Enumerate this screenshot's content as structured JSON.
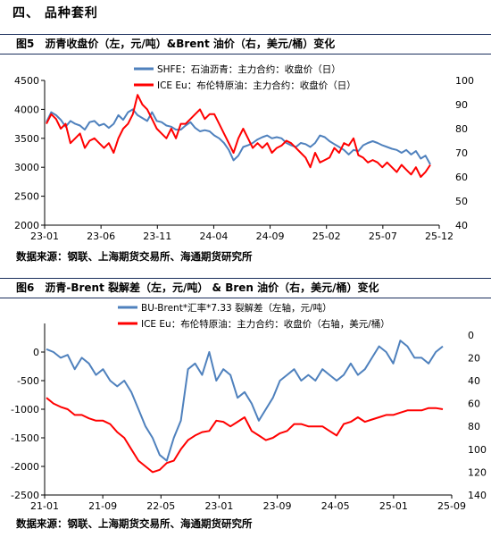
{
  "section": {
    "title": "四、 品种套利"
  },
  "figures": [
    {
      "num": "图5",
      "title": "沥青收盘价（左，元/吨）&Brent 油价（右，美元/桶）变化",
      "source": "数据来源：钢联、上海期货交易所、海通期货研究所"
    },
    {
      "num": "图6",
      "title": "沥青-Brent 裂解差（左，元/吨） & Bren 油价（右，美元/桶）变化",
      "source": "数据来源：钢联、上海期货交易所、海通期货研究所"
    }
  ],
  "chart_data": [
    {
      "type": "line",
      "xticks": [
        "23-01",
        "23-06",
        "23-11",
        "24-04",
        "24-09",
        "25-02",
        "25-07",
        "25-12"
      ],
      "ylim_left": [
        2000,
        4500
      ],
      "yticks_left": [
        2000,
        2500,
        3000,
        3500,
        4000,
        4500
      ],
      "ylim_right": [
        40,
        100
      ],
      "yticks_right": [
        40,
        50,
        60,
        70,
        80,
        90,
        100
      ],
      "grid": false,
      "legend_position": "top-center",
      "series": [
        {
          "name": "SHFE：石油沥青：主力合约：收盘价（日）",
          "axis": "left",
          "color": "#4f81bd",
          "values": [
            3780,
            3950,
            3900,
            3820,
            3700,
            3800,
            3750,
            3720,
            3650,
            3780,
            3800,
            3720,
            3750,
            3680,
            3750,
            3900,
            3820,
            3950,
            4000,
            3900,
            3850,
            3800,
            3950,
            3800,
            3780,
            3720,
            3700,
            3650,
            3650,
            3720,
            3780,
            3680,
            3620,
            3640,
            3620,
            3550,
            3500,
            3420,
            3300,
            3120,
            3200,
            3350,
            3380,
            3420,
            3480,
            3520,
            3550,
            3500,
            3520,
            3500,
            3420,
            3380,
            3350,
            3420,
            3400,
            3350,
            3420,
            3550,
            3520,
            3450,
            3400,
            3350,
            3300,
            3220,
            3300,
            3280,
            3380,
            3420,
            3450,
            3420,
            3380,
            3350,
            3320,
            3300,
            3250,
            3300,
            3220,
            3280,
            3150,
            3200,
            3050
          ]
        },
        {
          "name": "ICE Eu：布伦特原油：主力合约：收盘价（日）",
          "axis": "right",
          "color": "#ff0000",
          "values": [
            82,
            86,
            84,
            80,
            82,
            74,
            76,
            78,
            72,
            75,
            76,
            74,
            72,
            74,
            70,
            76,
            80,
            82,
            86,
            94,
            90,
            88,
            84,
            80,
            78,
            76,
            80,
            76,
            82,
            82,
            84,
            86,
            88,
            84,
            86,
            86,
            82,
            78,
            74,
            70,
            76,
            80,
            76,
            72,
            74,
            72,
            74,
            70,
            72,
            73,
            75,
            74,
            72,
            70,
            68,
            64,
            70,
            66,
            67,
            68,
            72,
            70,
            74,
            73,
            76,
            69,
            68,
            66,
            67,
            66,
            64,
            66,
            64,
            62,
            65,
            63,
            61,
            64,
            60,
            62,
            65
          ]
        }
      ]
    },
    {
      "type": "line",
      "xticks": [
        "21-01",
        "21-09",
        "22-05",
        "23-01",
        "23-09",
        "24-05",
        "25-01",
        "25-09"
      ],
      "ylim_left": [
        -2500,
        500
      ],
      "yticks_left": [
        -2500,
        -2000,
        -1500,
        -1000,
        -500,
        0
      ],
      "ylim_right": [
        140,
        -10
      ],
      "yticks_right": [
        0,
        20,
        40,
        60,
        80,
        100,
        120,
        140
      ],
      "right_axis_inverted": true,
      "grid": false,
      "legend_position": "top-center",
      "series": [
        {
          "name": "BU-Brent*汇率*7.33 裂解差（左轴，元/吨）",
          "axis": "left",
          "color": "#4f81bd",
          "values": [
            50,
            0,
            -100,
            -50,
            -300,
            -100,
            -200,
            -400,
            -300,
            -500,
            -600,
            -500,
            -700,
            -1000,
            -1300,
            -1500,
            -1800,
            -1900,
            -1500,
            -1200,
            -300,
            -200,
            -400,
            0,
            -500,
            -300,
            -400,
            -800,
            -700,
            -900,
            -1200,
            -1000,
            -800,
            -500,
            -400,
            -300,
            -500,
            -400,
            -500,
            -300,
            -400,
            -500,
            -400,
            -200,
            -400,
            -300,
            -100,
            100,
            0,
            -200,
            200,
            100,
            -100,
            -100,
            -200,
            0,
            100
          ]
        },
        {
          "name": "ICE Eu：布伦特原油：主力合约：收盘价（右轴，美元/桶）",
          "axis": "right",
          "color": "#ff0000",
          "values": [
            55,
            60,
            63,
            65,
            70,
            70,
            73,
            75,
            75,
            78,
            85,
            90,
            100,
            110,
            115,
            120,
            118,
            112,
            110,
            100,
            92,
            88,
            85,
            84,
            75,
            76,
            80,
            76,
            72,
            84,
            88,
            92,
            90,
            86,
            84,
            78,
            78,
            80,
            80,
            80,
            84,
            88,
            78,
            76,
            72,
            76,
            74,
            72,
            70,
            70,
            68,
            66,
            66,
            66,
            64,
            64,
            65
          ]
        }
      ]
    }
  ]
}
